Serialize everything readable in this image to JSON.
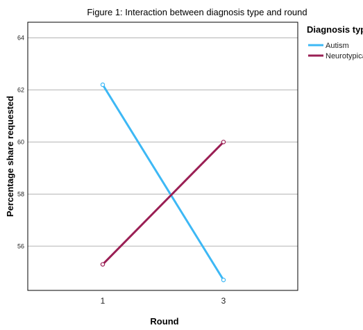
{
  "chart_data": {
    "type": "line",
    "title": "Figure 1: Interaction between diagnosis type and round",
    "xlabel": "Round",
    "ylabel": "Percentage share requested",
    "categories": [
      "1",
      "3"
    ],
    "ylim": [
      54.3,
      64.6
    ],
    "yticks": [
      56,
      58,
      60,
      62,
      64
    ],
    "grid": true,
    "legend_position": "right",
    "legend_title": "Diagnosis type",
    "series": [
      {
        "name": "Autism",
        "values": [
          62.2,
          54.7
        ],
        "color": "#3db8f5"
      },
      {
        "name": "Neurotypical",
        "values": [
          55.3,
          60.0
        ],
        "color": "#9a1f54"
      }
    ]
  }
}
